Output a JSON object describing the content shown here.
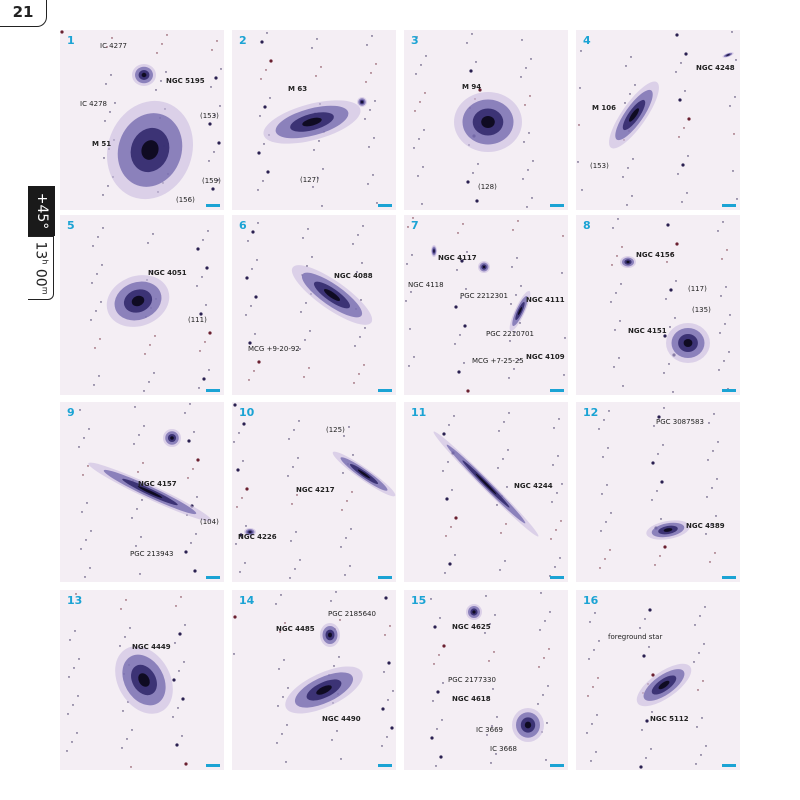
{
  "page_number": "21",
  "tab": {
    "dec": "+45°",
    "ra": [
      "13",
      "h",
      "00",
      "m"
    ]
  },
  "panels": [
    {
      "number": "1",
      "labels": [
        "IC 4277",
        "NGC 5195",
        "IC 4278",
        "(153)",
        "M 51",
        "(159)",
        "(156)"
      ]
    },
    {
      "number": "2",
      "labels": [
        "M 63",
        "(127)"
      ]
    },
    {
      "number": "3",
      "labels": [
        "M 94",
        "(128)"
      ]
    },
    {
      "number": "4",
      "labels": [
        "NGC 4248",
        "M 106",
        "(153)"
      ]
    },
    {
      "number": "5",
      "labels": [
        "NGC 4051",
        "(111)"
      ]
    },
    {
      "number": "6",
      "labels": [
        "NGC 4088",
        "MCG +9-20-92"
      ]
    },
    {
      "number": "7",
      "labels": [
        "NGC 4117",
        "NGC 4118",
        "PGC 2212301",
        "NGC 4111",
        "PGC 2210701",
        "MCG +7-25-25",
        "NGC 4109"
      ]
    },
    {
      "number": "8",
      "labels": [
        "NGC 4156",
        "(117)",
        "(135)",
        "NGC 4151"
      ]
    },
    {
      "number": "9",
      "labels": [
        "NGC 4157",
        "(104)",
        "PGC 213943"
      ]
    },
    {
      "number": "10",
      "labels": [
        "(125)",
        "NGC 4217",
        "NGC 4226"
      ]
    },
    {
      "number": "11",
      "labels": [
        "NGC 4244"
      ]
    },
    {
      "number": "12",
      "labels": [
        "PGC 3087583",
        "NGC 4389"
      ]
    },
    {
      "number": "13",
      "labels": [
        "NGC 4449"
      ]
    },
    {
      "number": "14",
      "labels": [
        "PGC 2185640",
        "NGC 4485",
        "NGC 4490"
      ]
    },
    {
      "number": "15",
      "labels": [
        "NGC 4625",
        "PGC 2177330",
        "NGC 4618",
        "IC 3669",
        "IC 3668"
      ]
    },
    {
      "number": "16",
      "labels": [
        "foreground star",
        "NGC 5112"
      ]
    }
  ]
}
